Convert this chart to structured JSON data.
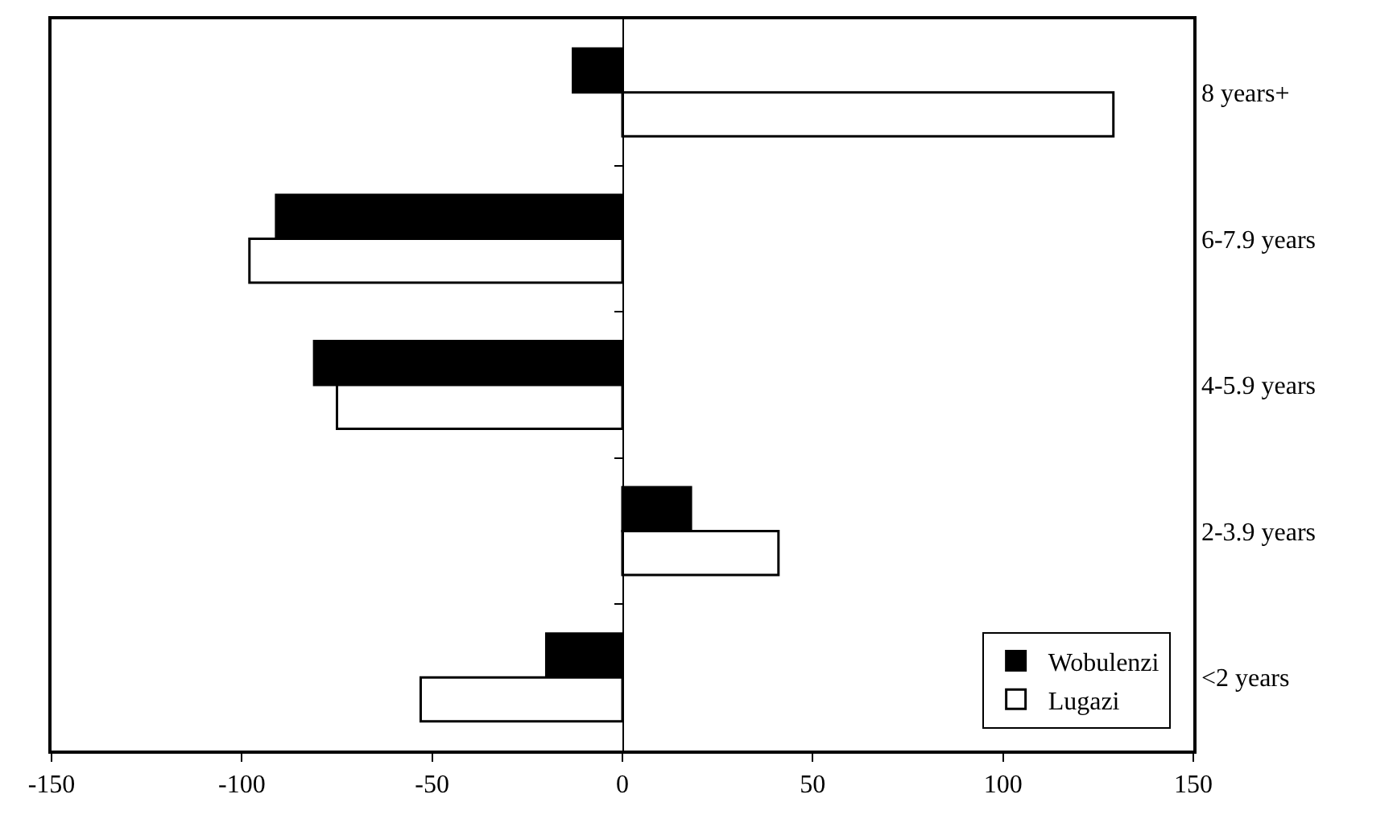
{
  "chart_data": {
    "type": "bar",
    "orientation": "horizontal",
    "categories": [
      "8 years+",
      "6-7.9 years",
      "4-5.9 years",
      "2-3.9 years",
      "<2 years"
    ],
    "series": [
      {
        "name": "Wobulenzi",
        "color": "#000000",
        "values": [
          -13,
          -91,
          -81,
          18,
          -20
        ]
      },
      {
        "name": "Lugazi",
        "color": "#ffffff",
        "values": [
          129,
          -98,
          -75,
          41,
          -53
        ]
      }
    ],
    "xlim": [
      -150,
      150
    ],
    "xticks": [
      -150,
      -100,
      -50,
      0,
      50,
      100,
      150
    ],
    "legend": "bottom right"
  }
}
